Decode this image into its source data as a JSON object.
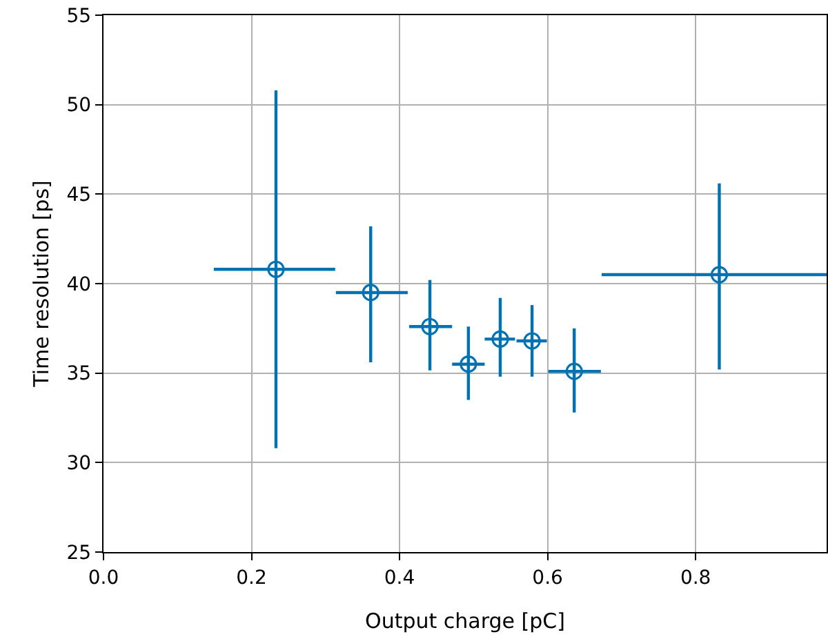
{
  "chart_data": {
    "type": "scatter",
    "xlabel": "Output charge [pC]",
    "ylabel": "Time resolution [ps]",
    "x": [
      0.233,
      0.361,
      0.441,
      0.493,
      0.536,
      0.579,
      0.636,
      0.832
    ],
    "values": [
      40.8,
      39.5,
      37.6,
      35.5,
      36.9,
      36.8,
      35.1,
      40.5
    ],
    "errors": [
      [
        30.8,
        50.8
      ],
      [
        35.6,
        43.2
      ],
      [
        35.15,
        40.2
      ],
      [
        33.5,
        37.6
      ],
      [
        34.8,
        39.2
      ],
      [
        34.8,
        38.8
      ],
      [
        32.8,
        37.5
      ],
      [
        35.2,
        45.6
      ]
    ],
    "xerrors": [
      [
        0.149,
        0.313
      ],
      [
        0.314,
        0.411
      ],
      [
        0.413,
        0.471
      ],
      [
        0.471,
        0.515
      ],
      [
        0.515,
        0.556
      ],
      [
        0.558,
        0.599
      ],
      [
        0.601,
        0.672
      ],
      [
        0.673,
        0.977
      ]
    ],
    "color": "#0072b2",
    "marker": "circle",
    "grid": true,
    "xlim": [
      0,
      0.977
    ],
    "xticks": [
      {
        "value": 0,
        "label": "0.0"
      },
      {
        "value": 0.2,
        "label": "0.2"
      },
      {
        "value": 0.4,
        "label": "0.4"
      },
      {
        "value": 0.6,
        "label": "0.6"
      },
      {
        "value": 0.8,
        "label": "0.8"
      }
    ],
    "ylim": [
      25,
      55
    ],
    "yticks": [
      25,
      30,
      35,
      40,
      45,
      50,
      55
    ]
  }
}
